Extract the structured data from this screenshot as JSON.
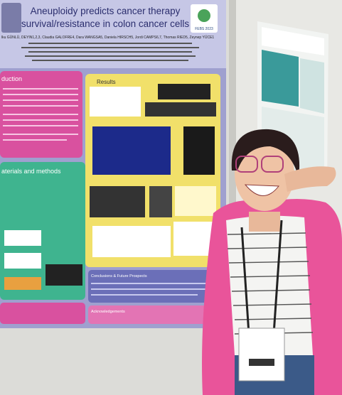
{
  "poster": {
    "title_line1": "Aneuploidy predicts cancer therapy",
    "title_line2": "survival/resistance in colon cancer cells",
    "logo": "FEBS 2023",
    "authors": "lku GÜNLÜ, DEYIN1,2,3, Claudia GALOFRE4, Dara WANGSA5, Daniela HIRSCH5, Jordi CAMPS6,7, Thomas RIED5, Zeynep YÜCE1",
    "sections": {
      "introduction": "duction",
      "results": "Results",
      "methods": "aterials and methods",
      "conclusions": "Conclusions & Future Prospects",
      "acknowledgements": "Acknowledgements"
    }
  }
}
